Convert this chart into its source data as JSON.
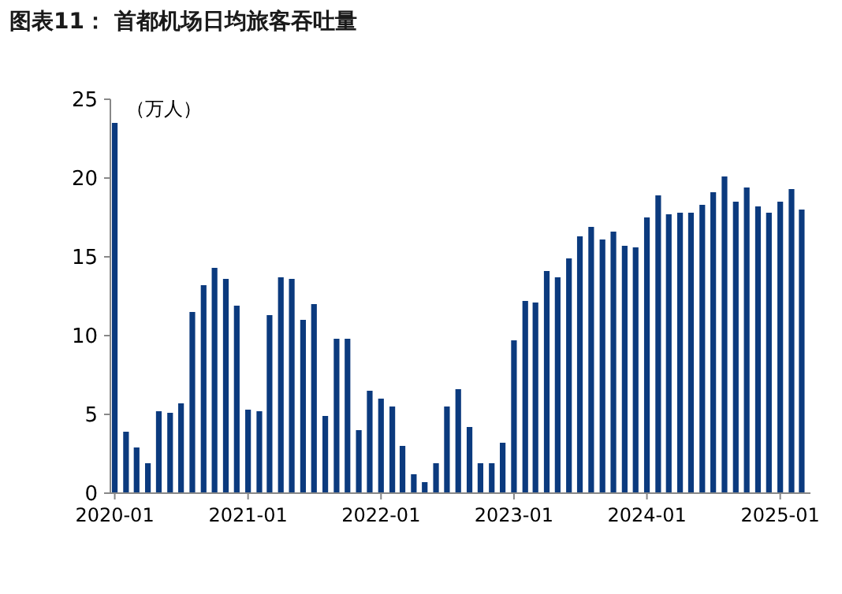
{
  "chart_data": {
    "type": "bar",
    "title": "图表11： 首都机场日均旅客吞吐量",
    "ylabel": "（万人）",
    "x": [
      "2020-01",
      "2020-02",
      "2020-03",
      "2020-04",
      "2020-05",
      "2020-06",
      "2020-07",
      "2020-08",
      "2020-09",
      "2020-10",
      "2020-11",
      "2020-12",
      "2021-01",
      "2021-02",
      "2021-03",
      "2021-04",
      "2021-05",
      "2021-06",
      "2021-07",
      "2021-08",
      "2021-09",
      "2021-10",
      "2021-11",
      "2021-12",
      "2022-01",
      "2022-02",
      "2022-03",
      "2022-04",
      "2022-05",
      "2022-06",
      "2022-07",
      "2022-08",
      "2022-09",
      "2022-10",
      "2022-11",
      "2022-12",
      "2023-01",
      "2023-02",
      "2023-03",
      "2023-04",
      "2023-05",
      "2023-06",
      "2023-07",
      "2023-08",
      "2023-09",
      "2023-10",
      "2023-11",
      "2023-12",
      "2024-01",
      "2024-02",
      "2024-03",
      "2024-04",
      "2024-05",
      "2024-06",
      "2024-07",
      "2024-08",
      "2024-09",
      "2024-10",
      "2024-11",
      "2024-12",
      "2025-01",
      "2025-02",
      "2025-03"
    ],
    "values": [
      23.5,
      3.9,
      2.9,
      1.9,
      5.2,
      5.1,
      5.7,
      11.5,
      13.2,
      14.3,
      13.6,
      11.9,
      5.3,
      5.2,
      11.3,
      13.7,
      13.6,
      11.0,
      12.0,
      4.9,
      9.8,
      9.8,
      4.0,
      6.5,
      6.0,
      5.5,
      3.0,
      1.2,
      0.7,
      1.9,
      5.5,
      6.6,
      4.2,
      1.9,
      1.9,
      3.2,
      9.7,
      12.2,
      12.1,
      14.1,
      13.7,
      14.9,
      16.3,
      16.9,
      16.1,
      16.6,
      15.7,
      15.6,
      17.5,
      18.9,
      17.7,
      17.8,
      17.8,
      18.3,
      19.1,
      20.1,
      18.5,
      19.4,
      18.2,
      17.8,
      18.5,
      19.3,
      18.0
    ],
    "color": "#0b3a7e",
    "xlim": [
      "2019-12-20",
      "2025-03-25"
    ],
    "xticks": [
      "2020-01",
      "2021-01",
      "2022-01",
      "2023-01",
      "2024-01",
      "2025-01"
    ],
    "ylim": [
      0,
      25
    ],
    "yticks": [
      0,
      5,
      10,
      15,
      20,
      25
    ],
    "grid": false
  }
}
